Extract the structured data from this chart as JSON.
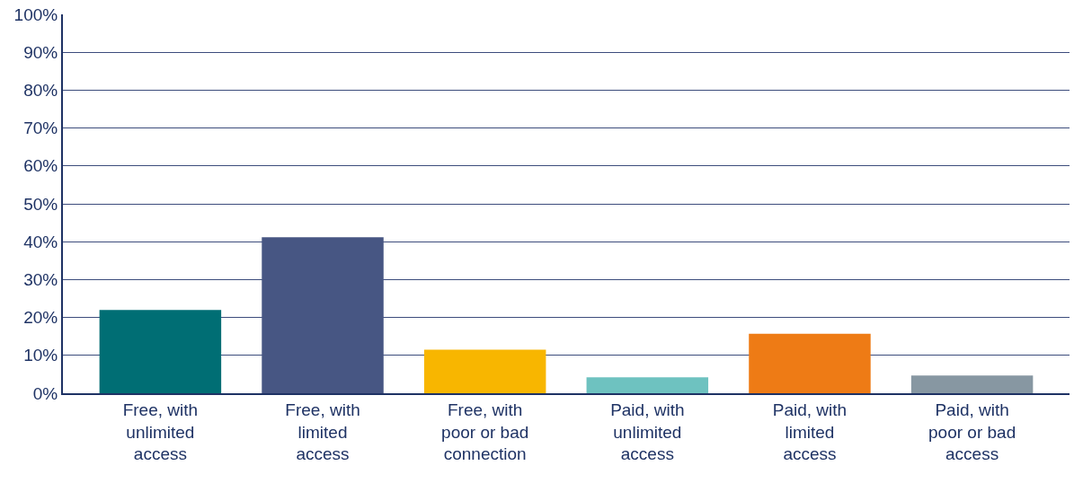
{
  "chart_data": {
    "type": "bar",
    "categories": [
      "Free, with unlimited access",
      "Free, with limited access",
      "Free, with poor or bad connection",
      "Paid, with unlimited access",
      "Paid, with limited access",
      "Paid, with poor or bad access"
    ],
    "values": [
      22,
      41.2,
      11.5,
      4.2,
      15.7,
      4.7
    ],
    "colors": [
      "#006e74",
      "#475683",
      "#f8b600",
      "#6ec2c0",
      "#ee7b15",
      "#8797a2"
    ],
    "ylim": [
      0,
      100
    ],
    "yticks": [
      {
        "value": 0,
        "label": "0%"
      },
      {
        "value": 10,
        "label": "10%"
      },
      {
        "value": 20,
        "label": "20%"
      },
      {
        "value": 30,
        "label": "30%"
      },
      {
        "value": 40,
        "label": "40%"
      },
      {
        "value": 50,
        "label": "50%"
      },
      {
        "value": 60,
        "label": "60%"
      },
      {
        "value": 70,
        "label": "70%"
      },
      {
        "value": 80,
        "label": "80%"
      },
      {
        "value": 90,
        "label": "90%"
      },
      {
        "value": 100,
        "label": "100%"
      }
    ],
    "grid": "y"
  }
}
